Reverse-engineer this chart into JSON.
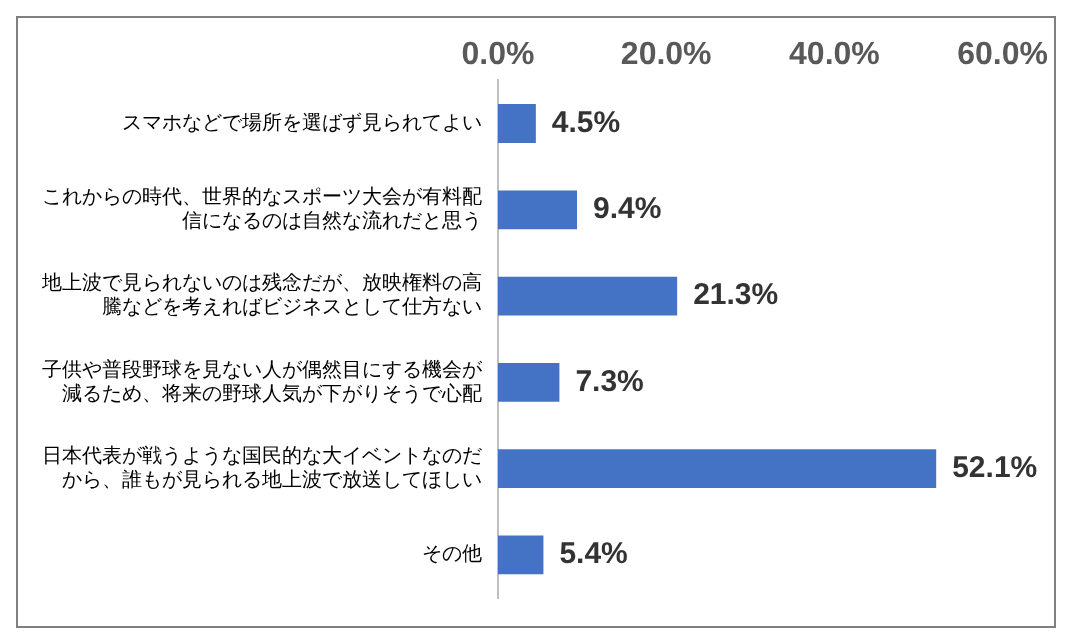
{
  "chart_data": {
    "type": "bar",
    "orientation": "horizontal",
    "categories": [
      "スマホなどで場所を選ばず見られてよい",
      "これからの時代、世界的なスポーツ大会が有料配信になるのは自然な流れだと思う",
      "地上波で見られないのは残念だが、放映権料の高騰などを考えればビジネスとして仕方ない",
      "子供や普段野球を見ない人が偶然目にする機会が減るため、将来の野球人気が下がりそうで心配",
      "日本代表が戦うような国民的な大イベントなのだから、誰もが見られる地上波で放送してほしい",
      "その他"
    ],
    "values": [
      4.5,
      9.4,
      21.3,
      7.3,
      52.1,
      5.4
    ],
    "value_labels": [
      "4.5%",
      "9.4%",
      "21.3%",
      "7.3%",
      "52.1%",
      "5.4%"
    ],
    "color": "#4472c4",
    "xlim": [
      0,
      60
    ],
    "xticks": [
      {
        "value": 0,
        "label": "0.0%"
      },
      {
        "value": 20,
        "label": "20.0%"
      },
      {
        "value": 40,
        "label": "40.0%"
      },
      {
        "value": 60,
        "label": "60.0%"
      }
    ],
    "grid": false,
    "legend": false
  }
}
